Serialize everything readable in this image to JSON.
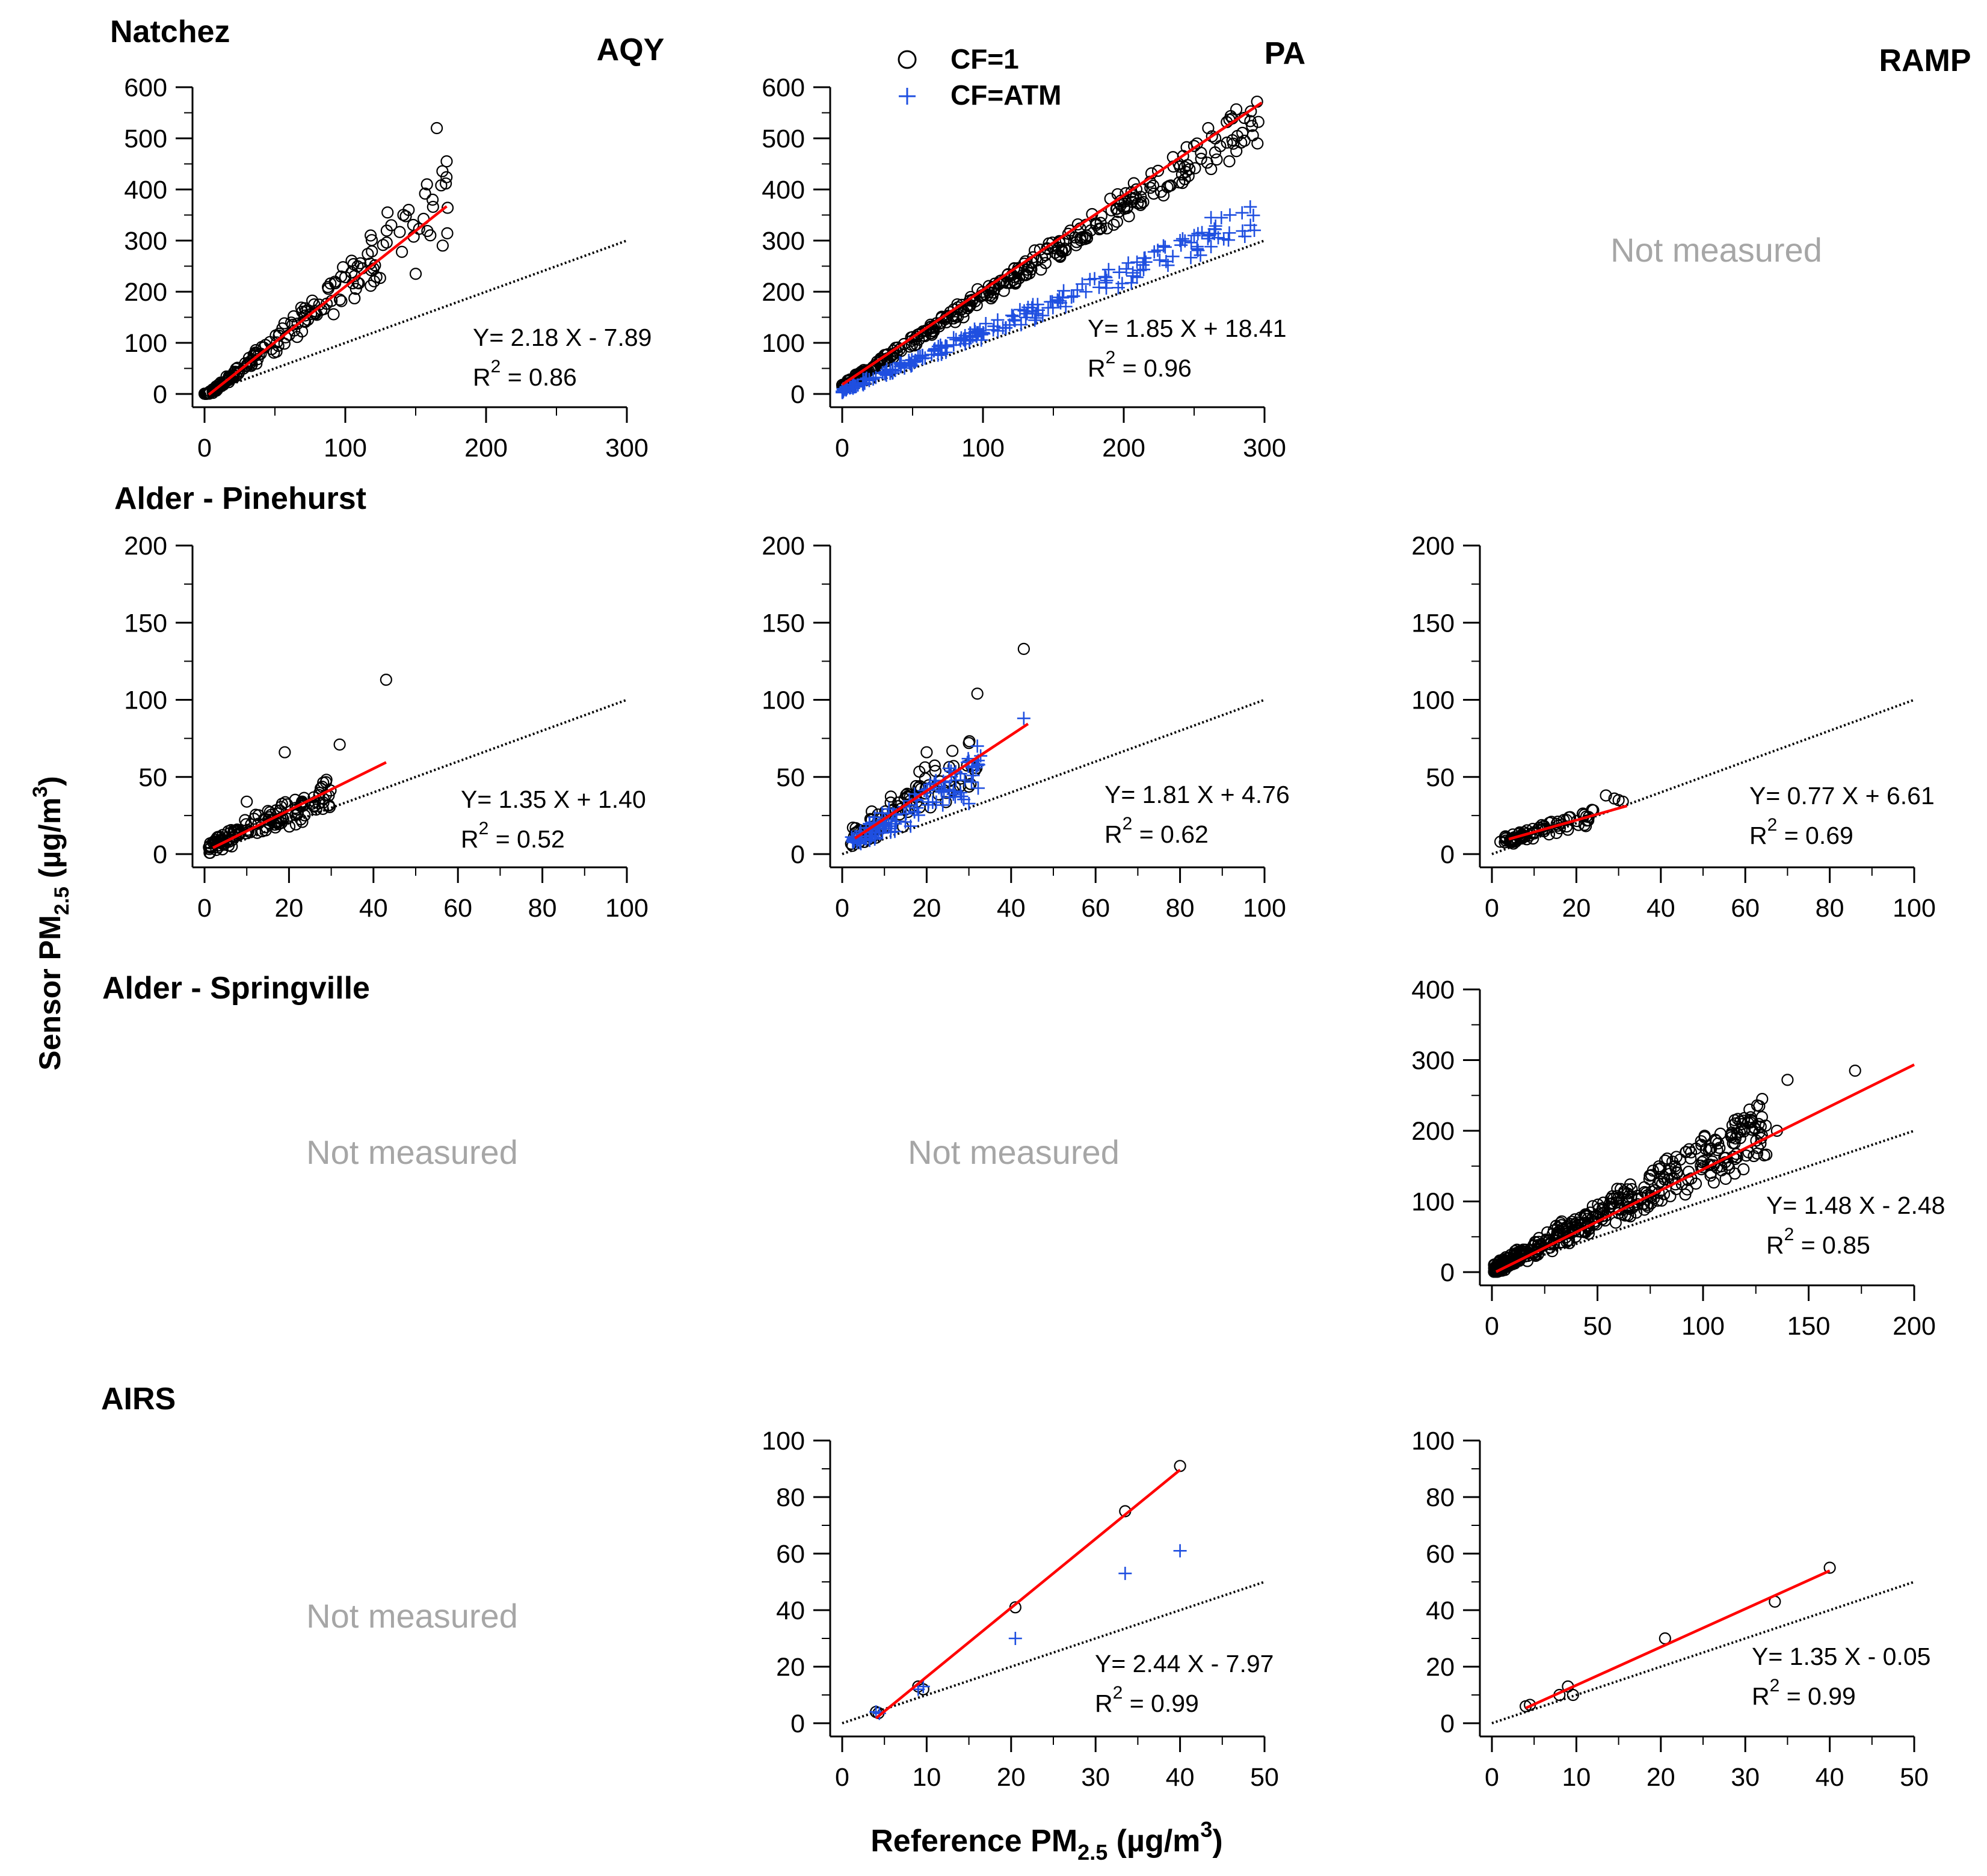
{
  "figure": {
    "ylabel": "Sensor PM",
    "ylabel_sub": "2.5",
    "ylabel_unit": " (µg/m",
    "ylabel_sup": "3",
    "ylabel_close": ")",
    "xlabel": "Reference PM",
    "xlabel_sub": "2.5",
    "xlabel_unit": " (µg/m",
    "xlabel_sup": "3",
    "xlabel_close": ")",
    "columns": [
      "AQY",
      "PA",
      "RAMP"
    ],
    "rows": [
      "Natchez",
      "Alder - Pinehurst",
      "Alder - Springville",
      "AIRS"
    ],
    "not_measured": "Not measured",
    "legend": {
      "cf1": "CF=1",
      "cfatm": "CF=ATM"
    },
    "colors": {
      "cf1": "#000000",
      "cfatm": "#1f4fe0",
      "fit": "#ff0000",
      "ref": "#000000",
      "not_measured": "#a6a6a6"
    }
  },
  "chart_data": [
    {
      "id": "natchez-aqy",
      "type": "scatter",
      "row": "Natchez",
      "column": "AQY",
      "xlim": [
        0,
        300
      ],
      "ylim": [
        0,
        600
      ],
      "xticks": [
        0,
        100,
        200,
        300
      ],
      "yticks": [
        0,
        100,
        200,
        300,
        400,
        500,
        600
      ],
      "fit": {
        "slope": 2.18,
        "intercept": -7.89,
        "x_range": [
          3,
          172
        ]
      },
      "equation": "Y= 2.18 X - 7.89",
      "r2_value": "0.86",
      "series": [
        {
          "name": "CF=1",
          "marker": "circle",
          "seed": 11,
          "count": 200,
          "x_max": 175,
          "x_power": 1.8,
          "y_factor": 2.18,
          "y_offset": -7.89,
          "noise": 0.2,
          "noise_abs": 5,
          "extra": [
            [
              165,
              520
            ],
            [
              172,
              455
            ],
            [
              158,
              410
            ],
            [
              162,
              380
            ],
            [
              145,
              360
            ],
            [
              130,
              355
            ],
            [
              150,
              235
            ],
            [
              118,
              310
            ]
          ]
        }
      ]
    },
    {
      "id": "natchez-pa",
      "type": "scatter",
      "row": "Natchez",
      "column": "PA",
      "xlim": [
        0,
        300
      ],
      "ylim": [
        0,
        600
      ],
      "xticks": [
        0,
        100,
        200,
        300
      ],
      "yticks": [
        0,
        100,
        200,
        300,
        400,
        500,
        600
      ],
      "fit": {
        "slope": 1.85,
        "intercept": 18.41,
        "x_range": [
          0,
          298
        ]
      },
      "equation": "Y= 1.85 X + 18.41",
      "r2_value": "0.96",
      "series": [
        {
          "name": "CF=1",
          "marker": "circle",
          "seed": 21,
          "count": 340,
          "x_max": 300,
          "x_power": 1.5,
          "y_factor": 1.78,
          "y_offset": 14,
          "noise": 0.08,
          "noise_abs": 5,
          "extra": [
            [
              260,
              520
            ],
            [
              265,
              500
            ],
            [
              280,
              475
            ],
            [
              295,
              490
            ],
            [
              275,
              455
            ],
            [
              255,
              460
            ],
            [
              250,
              485
            ]
          ]
        },
        {
          "name": "CF=ATM",
          "marker": "plus",
          "seed": 22,
          "count": 230,
          "x_max": 295,
          "x_power": 1.5,
          "y_factor": 1.15,
          "y_offset": 6,
          "noise": 0.1,
          "noise_abs": 4,
          "extra": [
            [
              262,
              345
            ],
            [
              265,
              322
            ],
            [
              275,
              315
            ],
            [
              290,
              330
            ],
            [
              250,
              310
            ],
            [
              240,
              300
            ]
          ]
        }
      ]
    },
    {
      "id": "natchez-ramp",
      "type": "scatter",
      "row": "Natchez",
      "column": "RAMP",
      "measured": false
    },
    {
      "id": "pinehurst-aqy",
      "type": "scatter",
      "row": "Alder - Pinehurst",
      "column": "AQY",
      "xlim": [
        0,
        100
      ],
      "ylim": [
        0,
        200
      ],
      "xticks": [
        0,
        20,
        40,
        60,
        80,
        100
      ],
      "yticks": [
        0,
        50,
        100,
        150,
        200
      ],
      "fit": {
        "slope": 1.35,
        "intercept": 1.4,
        "x_range": [
          2,
          43
        ]
      },
      "equation": "Y= 1.35 X + 1.40",
      "r2_value": "0.52",
      "series": [
        {
          "name": "CF=1",
          "marker": "circle",
          "seed": 31,
          "count": 140,
          "x_max": 30,
          "x_min": 1,
          "x_power": 1.2,
          "y_factor": 1.15,
          "y_offset": 4,
          "noise": 0.3,
          "noise_abs": 4,
          "extra": [
            [
              43,
              113
            ],
            [
              32,
              71
            ],
            [
              19,
              66
            ],
            [
              10,
              34
            ]
          ]
        }
      ]
    },
    {
      "id": "pinehurst-pa",
      "type": "scatter",
      "row": "Alder - Pinehurst",
      "column": "PA",
      "xlim": [
        0,
        100
      ],
      "ylim": [
        0,
        200
      ],
      "xticks": [
        0,
        20,
        40,
        60,
        80,
        100
      ],
      "yticks": [
        0,
        50,
        100,
        150,
        200
      ],
      "fit": {
        "slope": 1.81,
        "intercept": 4.76,
        "x_range": [
          3,
          44
        ]
      },
      "equation": "Y= 1.81 X + 4.76",
      "r2_value": "0.62",
      "series": [
        {
          "name": "CF=1",
          "marker": "circle",
          "seed": 41,
          "count": 90,
          "x_max": 32,
          "x_min": 2,
          "x_power": 1.3,
          "y_factor": 1.75,
          "y_offset": 6,
          "noise": 0.3,
          "noise_abs": 5,
          "extra": [
            [
              43,
              133
            ],
            [
              32,
              104
            ],
            [
              20,
              66
            ],
            [
              30,
              72
            ]
          ]
        },
        {
          "name": "CF=ATM",
          "marker": "plus",
          "seed": 42,
          "count": 120,
          "x_max": 33,
          "x_min": 2,
          "x_power": 1.3,
          "y_factor": 1.45,
          "y_offset": 5,
          "noise": 0.3,
          "noise_abs": 4,
          "extra": [
            [
              43,
              88
            ],
            [
              32,
              70
            ],
            [
              31,
              51
            ],
            [
              29,
              48
            ]
          ]
        }
      ]
    },
    {
      "id": "pinehurst-ramp",
      "type": "scatter",
      "row": "Alder - Pinehurst",
      "column": "RAMP",
      "xlim": [
        0,
        100
      ],
      "ylim": [
        0,
        200
      ],
      "xticks": [
        0,
        20,
        40,
        60,
        80,
        100
      ],
      "yticks": [
        0,
        50,
        100,
        150,
        200
      ],
      "fit": {
        "slope": 0.77,
        "intercept": 6.61,
        "x_range": [
          4,
          32
        ]
      },
      "equation": "Y= 0.77 X + 6.61",
      "r2_value": "0.69",
      "series": [
        {
          "name": "CF=1",
          "marker": "circle",
          "seed": 51,
          "count": 80,
          "x_max": 24,
          "x_min": 3,
          "x_power": 1.3,
          "y_factor": 0.8,
          "y_offset": 6,
          "noise": 0.2,
          "noise_abs": 2,
          "extra": [
            [
              27,
              38
            ],
            [
              29,
              36
            ],
            [
              31,
              34
            ],
            [
              30,
              35
            ],
            [
              2,
              8
            ]
          ]
        }
      ]
    },
    {
      "id": "springville-aqy",
      "type": "scatter",
      "row": "Alder - Springville",
      "column": "AQY",
      "measured": false
    },
    {
      "id": "springville-pa",
      "type": "scatter",
      "row": "Alder - Springville",
      "column": "PA",
      "measured": false
    },
    {
      "id": "springville-ramp",
      "type": "scatter",
      "row": "Alder - Springville",
      "column": "RAMP",
      "xlim": [
        0,
        200
      ],
      "ylim": [
        0,
        400
      ],
      "xticks": [
        0,
        50,
        100,
        150,
        200
      ],
      "yticks": [
        0,
        100,
        200,
        300,
        400
      ],
      "fit": {
        "slope": 1.48,
        "intercept": -2.48,
        "x_range": [
          2,
          200
        ]
      },
      "equation": "Y= 1.48 X - 2.48",
      "r2_value": "0.85",
      "series": [
        {
          "name": "CF=1",
          "marker": "circle",
          "seed": 61,
          "count": 420,
          "x_max": 130,
          "x_min": 1,
          "x_power": 1.6,
          "y_factor": 1.55,
          "y_offset": 2,
          "noise": 0.22,
          "noise_abs": 8,
          "extra": [
            [
              172,
              285
            ],
            [
              140,
              272
            ],
            [
              128,
              245
            ],
            [
              122,
              230
            ],
            [
              135,
              200
            ],
            [
              115,
              215
            ]
          ]
        }
      ]
    },
    {
      "id": "airs-aqy",
      "type": "scatter",
      "row": "AIRS",
      "column": "AQY",
      "measured": false
    },
    {
      "id": "airs-pa",
      "type": "scatter",
      "row": "AIRS",
      "column": "PA",
      "xlim": [
        0,
        50
      ],
      "ylim": [
        0,
        100
      ],
      "xticks": [
        0,
        10,
        20,
        30,
        40,
        50
      ],
      "yticks": [
        0,
        20,
        40,
        60,
        80,
        100
      ],
      "fit": {
        "slope": 2.44,
        "intercept": -7.97,
        "x_range": [
          4,
          40
        ]
      },
      "equation": "Y= 2.44 X - 7.97",
      "r2_value": "0.99",
      "series": [
        {
          "name": "CF=1",
          "marker": "circle",
          "points": [
            [
              4,
              4
            ],
            [
              4.3,
              3.6
            ],
            [
              9,
              13
            ],
            [
              9.6,
              12
            ],
            [
              20.5,
              41
            ],
            [
              33.5,
              75
            ],
            [
              40,
              91
            ]
          ]
        },
        {
          "name": "CF=ATM",
          "marker": "plus",
          "points": [
            [
              4,
              4
            ],
            [
              4.4,
              3.5
            ],
            [
              9,
              12
            ],
            [
              9.6,
              13
            ],
            [
              20.5,
              30
            ],
            [
              33.5,
              53
            ],
            [
              40,
              61
            ]
          ]
        }
      ]
    },
    {
      "id": "airs-ramp",
      "type": "scatter",
      "row": "AIRS",
      "column": "RAMP",
      "xlim": [
        0,
        50
      ],
      "ylim": [
        0,
        100
      ],
      "xticks": [
        0,
        10,
        20,
        30,
        40,
        50
      ],
      "yticks": [
        0,
        20,
        40,
        60,
        80,
        100
      ],
      "fit": {
        "slope": 1.35,
        "intercept": -0.05,
        "x_range": [
          4,
          40
        ]
      },
      "equation": "Y= 1.35 X - 0.05",
      "r2_value": "0.99",
      "series": [
        {
          "name": "CF=1",
          "marker": "circle",
          "points": [
            [
              4,
              6
            ],
            [
              4.5,
              6.5
            ],
            [
              8,
              10
            ],
            [
              9,
              13
            ],
            [
              9.6,
              10
            ],
            [
              20.5,
              30
            ],
            [
              33.5,
              43
            ],
            [
              40,
              55
            ]
          ]
        }
      ]
    }
  ]
}
